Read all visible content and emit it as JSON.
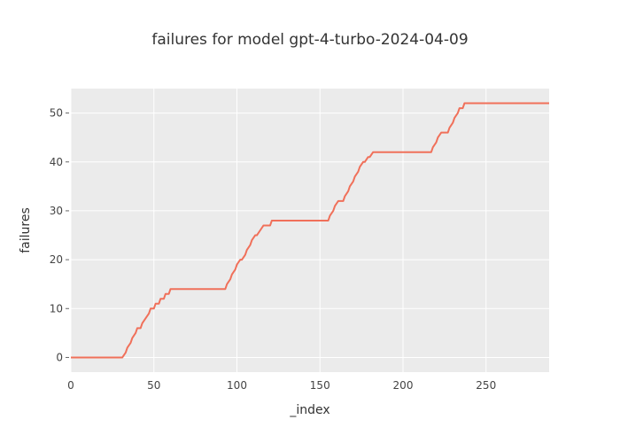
{
  "chart_data": {
    "type": "line",
    "title": "failures for model gpt-4-turbo-2024-04-09",
    "xlabel": "_index",
    "ylabel": "failures",
    "xlim": [
      0,
      288
    ],
    "ylim": [
      -3,
      55
    ],
    "x_ticks": [
      0,
      50,
      100,
      150,
      200,
      250
    ],
    "y_ticks": [
      0,
      10,
      20,
      30,
      40,
      50
    ],
    "grid": true,
    "colors": {
      "plot_bg": "#ebebeb",
      "grid": "#ffffff",
      "line": "#f0705a"
    },
    "series": [
      {
        "x": [
          0,
          31,
          33,
          34,
          36,
          37,
          39,
          40,
          42,
          43,
          45,
          47,
          48,
          50,
          51,
          53,
          54,
          56,
          57,
          59,
          60,
          62,
          63,
          93,
          94,
          96,
          97,
          99,
          100,
          102,
          103,
          105,
          106,
          108,
          109,
          111,
          112,
          114,
          116,
          117,
          120,
          121,
          123,
          124,
          155,
          156,
          158,
          159,
          161,
          162,
          164,
          165,
          167,
          168,
          170,
          171,
          173,
          174,
          176,
          177,
          179,
          180,
          182,
          184,
          185,
          217,
          218,
          220,
          221,
          223,
          224,
          227,
          228,
          230,
          231,
          233,
          234,
          236,
          237,
          239,
          288
        ],
        "y": [
          0,
          0,
          1,
          2,
          3,
          4,
          5,
          6,
          6,
          7,
          8,
          9,
          10,
          10,
          11,
          11,
          12,
          12,
          13,
          13,
          14,
          14,
          14,
          14,
          15,
          16,
          17,
          18,
          19,
          20,
          20,
          21,
          22,
          23,
          24,
          25,
          25,
          26,
          27,
          27,
          27,
          28,
          28,
          28,
          28,
          29,
          30,
          31,
          32,
          32,
          32,
          33,
          34,
          35,
          36,
          37,
          38,
          39,
          40,
          40,
          41,
          41,
          42,
          42,
          42,
          42,
          43,
          44,
          45,
          46,
          46,
          46,
          47,
          48,
          49,
          50,
          51,
          51,
          52,
          52,
          52
        ]
      }
    ]
  }
}
